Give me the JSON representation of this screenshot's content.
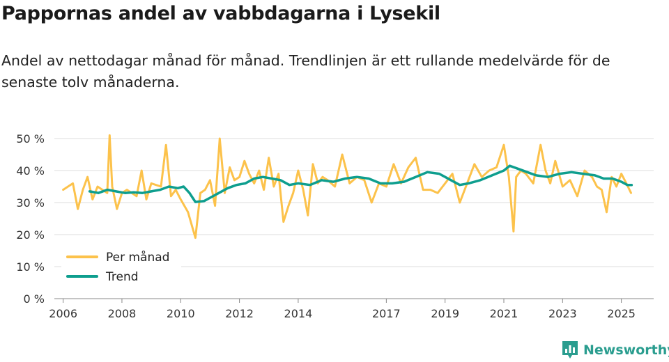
{
  "title": "Pappornas andel av vabbdagarna i Lysekil",
  "subtitle": "Andel av nettodagar månad för månad. Trendlinjen är ett rullande medelvärde för de senaste tolv månaderna.",
  "brand": {
    "name": "Newsworthy",
    "logo_icon": "bar-chart-bubble-icon"
  },
  "colors": {
    "monthly": "#fcc24b",
    "trend": "#0e9e8e",
    "grid": "#dddddd",
    "axis": "#333333"
  },
  "chart_data": {
    "type": "line",
    "ylim": [
      0,
      50
    ],
    "xlim": [
      2005.7,
      2026.1
    ],
    "yticks": [
      0,
      10,
      20,
      30,
      40,
      50
    ],
    "ytick_labels": [
      "0 %",
      "10 %",
      "20 %",
      "30 %",
      "40 %",
      "50 %"
    ],
    "xticks": [
      2006,
      2008,
      2010,
      2012,
      2014,
      2017,
      2019,
      2021,
      2023,
      2025
    ],
    "xtick_labels": [
      "2006",
      "2008",
      "2010",
      "2012",
      "2014",
      "2017",
      "2019",
      "2021",
      "2023",
      "2025"
    ],
    "legend": {
      "position": "bottom-left",
      "entries": [
        "Per månad",
        "Trend"
      ]
    },
    "series": [
      {
        "name": "Per månad",
        "x": [
          2006.0,
          2006.33,
          2006.5,
          2006.67,
          2006.83,
          2007.0,
          2007.17,
          2007.5,
          2007.58,
          2007.67,
          2007.83,
          2008.0,
          2008.17,
          2008.5,
          2008.67,
          2008.83,
          2009.0,
          2009.33,
          2009.5,
          2009.67,
          2009.83,
          2010.0,
          2010.25,
          2010.5,
          2010.67,
          2010.83,
          2011.0,
          2011.17,
          2011.33,
          2011.5,
          2011.67,
          2011.83,
          2012.0,
          2012.17,
          2012.33,
          2012.5,
          2012.67,
          2012.83,
          2013.0,
          2013.17,
          2013.33,
          2013.5,
          2013.67,
          2013.83,
          2014.0,
          2014.17,
          2014.33,
          2014.5,
          2014.67,
          2014.83,
          2015.0,
          2015.25,
          2015.5,
          2015.75,
          2016.0,
          2016.25,
          2016.5,
          2016.75,
          2017.0,
          2017.25,
          2017.5,
          2017.75,
          2018.0,
          2018.25,
          2018.5,
          2018.75,
          2019.0,
          2019.25,
          2019.5,
          2019.75,
          2020.0,
          2020.25,
          2020.5,
          2020.75,
          2021.0,
          2021.17,
          2021.33,
          2021.42,
          2021.58,
          2021.75,
          2022.0,
          2022.25,
          2022.42,
          2022.58,
          2022.75,
          2023.0,
          2023.25,
          2023.5,
          2023.75,
          2024.0,
          2024.17,
          2024.33,
          2024.5,
          2024.67,
          2024.83,
          2025.0,
          2025.17,
          2025.33
        ],
        "values": [
          34,
          36,
          28,
          34,
          38,
          31,
          35,
          33,
          51,
          35,
          28,
          33,
          34,
          32,
          40,
          31,
          36,
          35,
          48,
          32,
          34,
          31,
          27,
          19,
          33,
          34,
          37,
          29,
          50,
          33,
          41,
          37,
          38,
          43,
          39,
          36,
          40,
          34,
          44,
          35,
          39,
          24,
          29,
          33,
          40,
          34,
          26,
          42,
          36,
          38,
          37,
          35,
          45,
          36,
          38,
          37,
          30,
          36,
          35,
          42,
          36,
          41,
          44,
          34,
          34,
          33,
          36,
          39,
          30,
          36,
          42,
          38,
          40,
          41,
          48,
          38,
          21,
          38,
          40,
          39,
          36,
          48,
          40,
          36,
          43,
          35,
          37,
          32,
          40,
          38,
          35,
          34,
          27,
          38,
          35,
          39,
          36,
          33
        ]
      },
      {
        "name": "Trend",
        "x": [
          2006.9,
          2007.2,
          2007.5,
          2007.8,
          2008.1,
          2008.4,
          2008.7,
          2009.0,
          2009.3,
          2009.6,
          2009.9,
          2010.1,
          2010.3,
          2010.5,
          2010.8,
          2011.0,
          2011.3,
          2011.6,
          2011.9,
          2012.2,
          2012.5,
          2012.8,
          2013.1,
          2013.4,
          2013.7,
          2014.0,
          2014.4,
          2014.8,
          2015.2,
          2015.6,
          2016.0,
          2016.4,
          2016.8,
          2017.2,
          2017.6,
          2018.0,
          2018.4,
          2018.8,
          2019.2,
          2019.5,
          2019.8,
          2020.2,
          2020.6,
          2021.0,
          2021.2,
          2021.5,
          2021.8,
          2022.1,
          2022.5,
          2022.9,
          2023.3,
          2023.7,
          2024.1,
          2024.4,
          2024.7,
          2025.0,
          2025.2,
          2025.35
        ],
        "values": [
          33.5,
          33.0,
          34.0,
          33.5,
          33.0,
          33.2,
          33.0,
          33.5,
          34.0,
          35.0,
          34.5,
          35.0,
          33.0,
          30.2,
          30.5,
          31.5,
          33.0,
          34.5,
          35.5,
          36.0,
          37.5,
          38.0,
          37.5,
          37.0,
          35.5,
          36.0,
          35.5,
          37.0,
          36.5,
          37.5,
          38.0,
          37.5,
          36.0,
          36.0,
          36.5,
          38.0,
          39.5,
          39.0,
          37.0,
          35.5,
          36.0,
          37.0,
          38.5,
          40.0,
          41.5,
          40.5,
          39.5,
          38.5,
          38.0,
          39.0,
          39.5,
          39.0,
          38.5,
          37.5,
          37.5,
          36.5,
          35.5,
          35.5
        ]
      }
    ]
  }
}
